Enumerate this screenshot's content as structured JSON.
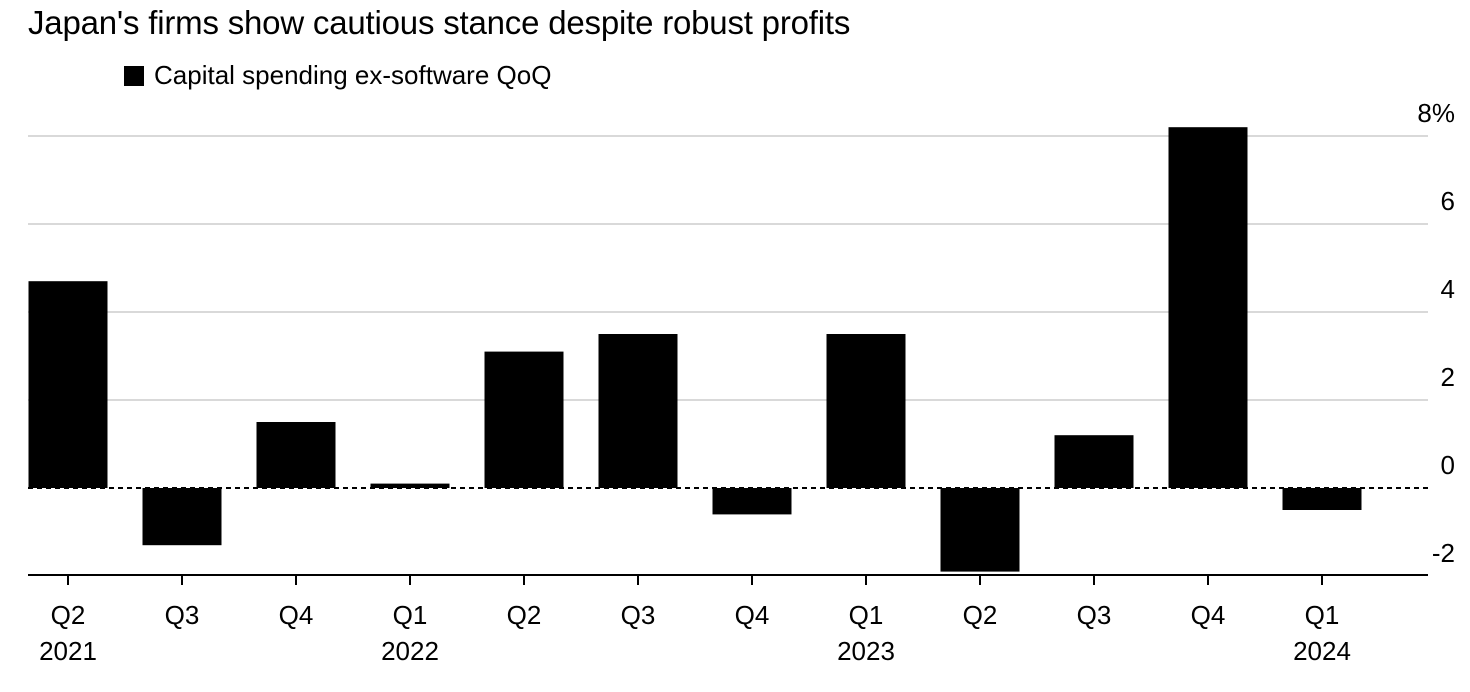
{
  "chart_data": {
    "type": "bar",
    "title": "Japan's firms show cautious stance despite robust profits",
    "legend": [
      {
        "label": "Capital spending ex-software QoQ",
        "color": "#000000"
      }
    ],
    "legend_position": "top-left",
    "categories": [
      "Q2 2021",
      "Q3 2021",
      "Q4 2021",
      "Q1 2022",
      "Q2 2022",
      "Q3 2022",
      "Q4 2022",
      "Q1 2023",
      "Q2 2023",
      "Q3 2023",
      "Q4 2023",
      "Q1 2024"
    ],
    "x_tick_labels": [
      {
        "quarter": "Q2",
        "year": "2021"
      },
      {
        "quarter": "Q3",
        "year": ""
      },
      {
        "quarter": "Q4",
        "year": ""
      },
      {
        "quarter": "Q1",
        "year": "2022"
      },
      {
        "quarter": "Q2",
        "year": ""
      },
      {
        "quarter": "Q3",
        "year": ""
      },
      {
        "quarter": "Q4",
        "year": ""
      },
      {
        "quarter": "Q1",
        "year": "2023"
      },
      {
        "quarter": "Q2",
        "year": ""
      },
      {
        "quarter": "Q3",
        "year": ""
      },
      {
        "quarter": "Q4",
        "year": ""
      },
      {
        "quarter": "Q1",
        "year": "2024"
      }
    ],
    "series": [
      {
        "name": "Capital spending ex-software QoQ",
        "color": "#000000",
        "values": [
          4.7,
          -1.3,
          1.5,
          0.1,
          3.1,
          3.5,
          -0.6,
          3.5,
          -1.9,
          1.2,
          8.2,
          -0.5
        ]
      }
    ],
    "ylim": [
      -2,
      8
    ],
    "y_ticks": [
      {
        "value": 8,
        "label": "8%"
      },
      {
        "value": 6,
        "label": "6"
      },
      {
        "value": 4,
        "label": "4"
      },
      {
        "value": 2,
        "label": "2"
      },
      {
        "value": 0,
        "label": "0"
      },
      {
        "value": -2,
        "label": "-2"
      }
    ],
    "y_axis_position": "right",
    "grid": true,
    "xlabel": "",
    "ylabel": ""
  }
}
